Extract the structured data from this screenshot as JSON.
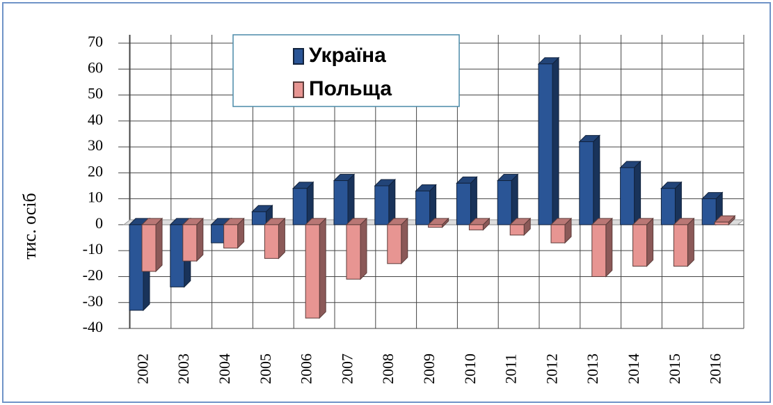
{
  "chart_data": {
    "type": "bar3d",
    "y_label": "тис. осіб",
    "categories": [
      "2002",
      "2003",
      "2004",
      "2005",
      "2006",
      "2007",
      "2008",
      "2009",
      "2010",
      "2011",
      "2012",
      "2013",
      "2014",
      "2015",
      "2016"
    ],
    "series": [
      {
        "name": "Україна",
        "color": "#2a5596",
        "values": [
          -33,
          -24,
          -7,
          5,
          14,
          17,
          15,
          13,
          16,
          17,
          62,
          32,
          22,
          14,
          10
        ]
      },
      {
        "name": "Польща",
        "color": "#e79592",
        "values": [
          -18,
          -14,
          -9,
          -13,
          -36,
          -21,
          -15,
          -1,
          -2,
          -4,
          -7,
          -20,
          -16,
          -16,
          1
        ]
      }
    ],
    "ylim": [
      -40,
      70
    ],
    "yticks": [
      -40,
      -30,
      -20,
      -10,
      0,
      10,
      20,
      30,
      40,
      50,
      60,
      70
    ],
    "grid": true
  }
}
